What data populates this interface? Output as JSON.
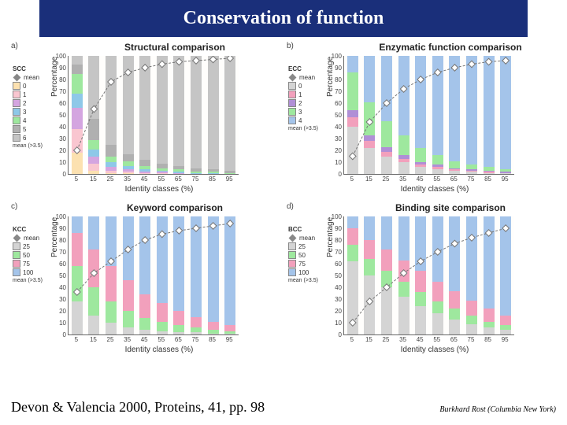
{
  "title": "Conservation of function",
  "citation": "Devon & Valencia 2000, Proteins, 41, pp. 98",
  "attribution": "Burkhard Rost (Columbia New York)",
  "axes": {
    "ylabel": "Percentage",
    "xlabel": "Identity classes (%)",
    "yticks": [
      0,
      10,
      20,
      30,
      40,
      50,
      60,
      70,
      80,
      90,
      100
    ],
    "xticks": [
      5,
      15,
      25,
      35,
      45,
      55,
      65,
      75,
      85,
      95
    ],
    "ylim": [
      0,
      100
    ]
  },
  "colors": {
    "scc": [
      "#fce1b0",
      "#f9c6d0",
      "#d4a5e0",
      "#8ec8e8",
      "#9ee89e",
      "#b0b0b0",
      "#c5c5c5"
    ],
    "ecc": [
      "#d4d4d4",
      "#f2a0bc",
      "#b08fd6",
      "#9ee89e",
      "#a4c4ea"
    ],
    "kcc": [
      "#d4d4d4",
      "#9ee89e",
      "#f2a0bc",
      "#a4c4ea"
    ],
    "bcc": [
      "#d4d4d4",
      "#9ee89e",
      "#f2a0bc",
      "#a4c4ea"
    ],
    "mean_marker": "#777777",
    "border": "#666666",
    "background": "#ffffff",
    "title_bg": "#1a2f7a",
    "title_fg": "#ffffff"
  },
  "panels": [
    {
      "id": "a",
      "title": "Structural comparison",
      "legend_title": "SCC",
      "legend_items": [
        "mean",
        "0",
        "1",
        "2",
        "3",
        "4",
        "5",
        "6"
      ],
      "legend_desc": "mean (>3.5)",
      "palette": "scc",
      "stacks": [
        [
          18,
          20,
          18,
          12,
          17,
          8,
          7
        ],
        [
          3,
          6,
          6,
          6,
          8,
          18,
          53
        ],
        [
          1,
          2,
          3,
          4,
          5,
          10,
          75
        ],
        [
          1,
          1,
          2,
          3,
          4,
          6,
          83
        ],
        [
          0,
          1,
          1,
          2,
          3,
          5,
          88
        ],
        [
          0,
          1,
          1,
          1,
          2,
          4,
          91
        ],
        [
          0,
          0,
          1,
          1,
          2,
          3,
          93
        ],
        [
          0,
          0,
          0,
          1,
          1,
          3,
          95
        ],
        [
          0,
          0,
          0,
          1,
          1,
          2,
          96
        ],
        [
          0,
          0,
          0,
          0,
          1,
          2,
          97
        ]
      ],
      "mean": [
        20,
        55,
        78,
        86,
        90,
        93,
        95,
        96,
        97,
        98
      ]
    },
    {
      "id": "b",
      "title": "Enzymatic function comparison",
      "legend_title": "ECC",
      "legend_items": [
        "mean",
        "0",
        "1",
        "2",
        "3",
        "4"
      ],
      "legend_desc": "mean (>3.5)",
      "palette": "ecc",
      "stacks": [
        [
          40,
          8,
          6,
          32,
          14
        ],
        [
          22,
          6,
          5,
          28,
          39
        ],
        [
          15,
          4,
          4,
          22,
          55
        ],
        [
          10,
          3,
          3,
          17,
          67
        ],
        [
          6,
          2,
          2,
          12,
          78
        ],
        [
          4,
          2,
          2,
          8,
          84
        ],
        [
          3,
          1,
          1,
          6,
          89
        ],
        [
          2,
          1,
          1,
          4,
          92
        ],
        [
          1,
          1,
          1,
          3,
          94
        ],
        [
          1,
          0,
          1,
          2,
          96
        ]
      ],
      "mean": [
        15,
        44,
        60,
        72,
        80,
        86,
        90,
        93,
        95,
        96
      ]
    },
    {
      "id": "c",
      "title": "Keyword comparison",
      "legend_title": "KCC",
      "legend_items": [
        "mean",
        "25",
        "50",
        "75",
        "100"
      ],
      "legend_desc": "mean (>3.5)",
      "palette": "kcc",
      "stacks": [
        [
          28,
          30,
          28,
          14
        ],
        [
          16,
          24,
          32,
          28
        ],
        [
          10,
          18,
          30,
          42
        ],
        [
          6,
          14,
          26,
          54
        ],
        [
          4,
          10,
          20,
          66
        ],
        [
          3,
          8,
          16,
          73
        ],
        [
          2,
          6,
          12,
          80
        ],
        [
          2,
          4,
          9,
          85
        ],
        [
          1,
          3,
          7,
          89
        ],
        [
          1,
          2,
          5,
          92
        ]
      ],
      "mean": [
        36,
        52,
        62,
        72,
        80,
        85,
        88,
        90,
        92,
        94
      ]
    },
    {
      "id": "d",
      "title": "Binding site comparison",
      "legend_title": "BCC",
      "legend_items": [
        "mean",
        "25",
        "50",
        "75",
        "100"
      ],
      "legend_desc": "mean (>3.5)",
      "palette": "bcc",
      "stacks": [
        [
          62,
          14,
          14,
          10
        ],
        [
          50,
          14,
          16,
          20
        ],
        [
          40,
          14,
          18,
          28
        ],
        [
          32,
          13,
          18,
          37
        ],
        [
          24,
          12,
          18,
          46
        ],
        [
          18,
          10,
          17,
          55
        ],
        [
          13,
          9,
          15,
          63
        ],
        [
          9,
          7,
          13,
          71
        ],
        [
          6,
          5,
          11,
          78
        ],
        [
          4,
          4,
          8,
          84
        ]
      ],
      "mean": [
        10,
        28,
        40,
        52,
        62,
        70,
        77,
        82,
        86,
        90
      ]
    }
  ]
}
